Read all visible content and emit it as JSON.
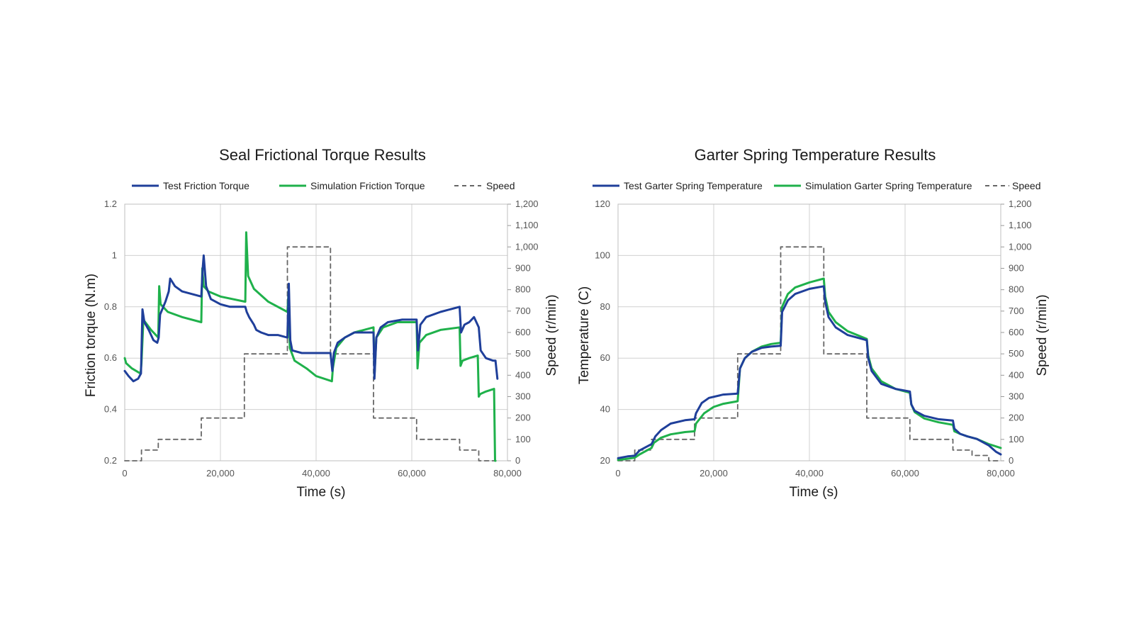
{
  "colors": {
    "test": "#1f3f9a",
    "simulation": "#1fb14b",
    "speed": "#666666"
  },
  "chart_data": [
    {
      "type": "line",
      "title": "Seal Frictional Torque Results",
      "xlabel": "Time (s)",
      "ylabel": "Friction torque (N.m)",
      "y2label": "Speed (r/min)",
      "xlim": [
        0,
        80000
      ],
      "ylim": [
        0.2,
        1.2
      ],
      "y2lim": [
        0,
        1200
      ],
      "xticks": [
        0,
        20000,
        40000,
        60000,
        80000
      ],
      "xtick_labels": [
        "0",
        "20,000",
        "40,000",
        "60,000",
        "80,000"
      ],
      "yticks": [
        0.2,
        0.4,
        0.6,
        0.8,
        1,
        1.2
      ],
      "ytick_labels": [
        "0.2",
        "0.4",
        "0.6",
        "0.8",
        "1",
        "1.2"
      ],
      "y2ticks": [
        0,
        100,
        200,
        300,
        400,
        500,
        600,
        700,
        800,
        900,
        1000,
        1100,
        1200
      ],
      "y2tick_labels": [
        "0",
        "100",
        "200",
        "300",
        "400",
        "500",
        "600",
        "700",
        "800",
        "900",
        "1,000",
        "1,100",
        "1,200"
      ],
      "grid": true,
      "legend_position": "top",
      "series": [
        {
          "name": "Test Friction Torque",
          "axis": "left",
          "style": "solid",
          "x": [
            0,
            800,
            1800,
            2800,
            3400,
            3700,
            4100,
            5000,
            6000,
            6800,
            7100,
            7400,
            8500,
            9200,
            9500,
            10500,
            12000,
            14000,
            16000,
            16300,
            16500,
            17000,
            18000,
            20000,
            22000,
            24000,
            25200,
            25500,
            26000,
            27000,
            27500,
            28500,
            30000,
            32000,
            34000,
            34300,
            34600,
            35000,
            37000,
            40000,
            43000,
            43400,
            43700,
            44500,
            46000,
            48000,
            52000,
            52200,
            52600,
            53500,
            55000,
            58000,
            61000,
            61300,
            61800,
            63000,
            66000,
            70000,
            70300,
            71000,
            72000,
            73000,
            74000,
            74400,
            75500,
            77000,
            77500,
            77900
          ],
          "y": [
            0.55,
            0.53,
            0.51,
            0.52,
            0.54,
            0.79,
            0.74,
            0.71,
            0.67,
            0.66,
            0.68,
            0.77,
            0.82,
            0.86,
            0.91,
            0.88,
            0.86,
            0.85,
            0.84,
            0.95,
            1.0,
            0.88,
            0.83,
            0.81,
            0.8,
            0.8,
            0.8,
            0.78,
            0.76,
            0.73,
            0.71,
            0.7,
            0.69,
            0.69,
            0.68,
            0.89,
            0.67,
            0.63,
            0.62,
            0.62,
            0.62,
            0.55,
            0.62,
            0.66,
            0.68,
            0.7,
            0.7,
            0.52,
            0.68,
            0.72,
            0.74,
            0.75,
            0.75,
            0.63,
            0.73,
            0.76,
            0.78,
            0.8,
            0.7,
            0.73,
            0.74,
            0.76,
            0.72,
            0.63,
            0.6,
            0.59,
            0.59,
            0.52
          ]
        },
        {
          "name": "Simulation Friction Torque",
          "axis": "left",
          "style": "solid",
          "x": [
            0,
            300,
            1500,
            3300,
            3500,
            3900,
            5500,
            7000,
            7200,
            7500,
            9000,
            12000,
            16000,
            16200,
            16500,
            17500,
            20000,
            25200,
            25400,
            25800,
            27000,
            30000,
            34000,
            34300,
            34500,
            35500,
            38000,
            40000,
            43300,
            43500,
            44200,
            46000,
            48000,
            52000,
            52200,
            52600,
            54000,
            57000,
            61000,
            61200,
            61600,
            63000,
            66000,
            70000,
            70200,
            70600,
            72000,
            73800,
            74000,
            74300,
            75500,
            77200,
            77400,
            77500
          ],
          "y": [
            0.6,
            0.58,
            0.56,
            0.54,
            0.58,
            0.75,
            0.71,
            0.68,
            0.88,
            0.81,
            0.78,
            0.76,
            0.74,
            0.95,
            0.88,
            0.86,
            0.84,
            0.82,
            1.09,
            0.92,
            0.87,
            0.82,
            0.78,
            0.87,
            0.64,
            0.59,
            0.56,
            0.53,
            0.51,
            0.56,
            0.64,
            0.68,
            0.7,
            0.72,
            0.53,
            0.68,
            0.72,
            0.74,
            0.74,
            0.56,
            0.66,
            0.69,
            0.71,
            0.72,
            0.57,
            0.59,
            0.6,
            0.61,
            0.45,
            0.46,
            0.47,
            0.48,
            0.2,
            0.2
          ]
        },
        {
          "name": "Speed",
          "axis": "right",
          "style": "dashed",
          "x": [
            0,
            3500,
            3500,
            7000,
            7000,
            16000,
            16000,
            25000,
            25000,
            34000,
            34000,
            43000,
            43000,
            52000,
            52000,
            61000,
            61000,
            70000,
            70000,
            74000,
            74000,
            77500
          ],
          "y": [
            0,
            0,
            50,
            50,
            100,
            100,
            200,
            200,
            500,
            500,
            1000,
            1000,
            500,
            500,
            200,
            200,
            100,
            100,
            50,
            50,
            0,
            0
          ]
        }
      ]
    },
    {
      "type": "line",
      "title": "Garter Spring Temperature Results",
      "xlabel": "Time (s)",
      "ylabel": "Temperature (C)",
      "y2label": "Speed (r/min)",
      "xlim": [
        0,
        80000
      ],
      "ylim": [
        20,
        120
      ],
      "y2lim": [
        0,
        1200
      ],
      "xticks": [
        0,
        20000,
        40000,
        60000,
        80000
      ],
      "xtick_labels": [
        "0",
        "20,000",
        "40,000",
        "60,000",
        "80,000"
      ],
      "yticks": [
        20,
        40,
        60,
        80,
        100,
        120
      ],
      "ytick_labels": [
        "20",
        "40",
        "60",
        "80",
        "100",
        "120"
      ],
      "y2ticks": [
        0,
        100,
        200,
        300,
        400,
        500,
        600,
        700,
        800,
        900,
        1000,
        1100,
        1200
      ],
      "y2tick_labels": [
        "0",
        "100",
        "200",
        "300",
        "400",
        "500",
        "600",
        "700",
        "800",
        "900",
        "1,000",
        "1,100",
        "1,200"
      ],
      "grid": true,
      "legend_position": "top",
      "series": [
        {
          "name": "Test Garter Spring Temperature",
          "axis": "left",
          "style": "solid",
          "x": [
            0,
            2000,
            3500,
            4500,
            6000,
            7000,
            7800,
            9000,
            11000,
            14000,
            16000,
            16300,
            17500,
            19000,
            22000,
            25000,
            25500,
            26500,
            28000,
            30000,
            32000,
            34000,
            34300,
            35500,
            37000,
            40000,
            43000,
            43300,
            44000,
            45500,
            48000,
            52000,
            52300,
            53000,
            55000,
            58000,
            61000,
            61300,
            62000,
            64000,
            67000,
            70000,
            70300,
            71500,
            73000,
            75000,
            77500,
            79000,
            80000
          ],
          "y": [
            21,
            21.7,
            22,
            24,
            25.5,
            26.5,
            29.5,
            32,
            34.5,
            35.8,
            36.2,
            38.5,
            42.5,
            44.5,
            45.8,
            46.2,
            56,
            60,
            62.5,
            64,
            64.5,
            64.8,
            78,
            82.5,
            85,
            87,
            88,
            82,
            76,
            72,
            69,
            67,
            60,
            55,
            50,
            48,
            47,
            42,
            39.5,
            37.5,
            36.2,
            35.7,
            32.5,
            30.5,
            29.5,
            28.5,
            26,
            23.5,
            22.5
          ]
        },
        {
          "name": "Simulation Garter Spring Temperature",
          "axis": "left",
          "style": "solid",
          "x": [
            0,
            2000,
            3500,
            4500,
            6000,
            7000,
            7500,
            9000,
            11000,
            14000,
            16000,
            16300,
            18000,
            20000,
            22000,
            25000,
            25500,
            26500,
            28000,
            30000,
            32000,
            34000,
            34300,
            35500,
            37000,
            40000,
            43000,
            43300,
            44000,
            45500,
            48000,
            52000,
            52300,
            53000,
            55000,
            58000,
            61000,
            61300,
            62000,
            64000,
            67000,
            70000,
            70300,
            71500,
            73000,
            75000,
            77500,
            80000
          ],
          "y": [
            20.3,
            20.8,
            21.2,
            22.5,
            24,
            25,
            27,
            29,
            30.3,
            31.2,
            31.5,
            34.5,
            38.5,
            41,
            42.2,
            43.2,
            56,
            60,
            62.5,
            64.5,
            65.5,
            66,
            80,
            85,
            87.5,
            89.5,
            91,
            84,
            78,
            74,
            70.5,
            67.5,
            61,
            56,
            51,
            48,
            46.5,
            42,
            39,
            36.5,
            35,
            34,
            31.5,
            30.5,
            29.5,
            28.5,
            26.5,
            25
          ]
        },
        {
          "name": "Speed",
          "axis": "right",
          "style": "dashed",
          "x": [
            0,
            3500,
            3500,
            7000,
            7000,
            16000,
            16000,
            25000,
            25000,
            34000,
            34000,
            43000,
            43000,
            52000,
            52000,
            61000,
            61000,
            70000,
            70000,
            74000,
            74000,
            77500,
            77500,
            80000
          ],
          "y": [
            0,
            0,
            50,
            50,
            100,
            100,
            200,
            200,
            500,
            500,
            1000,
            1000,
            500,
            500,
            200,
            200,
            100,
            100,
            50,
            50,
            25,
            25,
            0,
            0
          ]
        }
      ]
    }
  ]
}
